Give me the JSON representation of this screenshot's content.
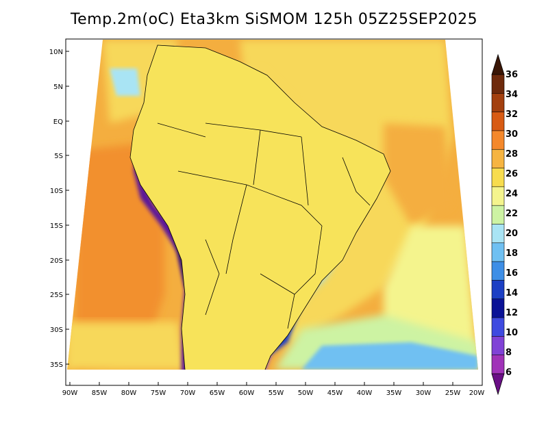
{
  "title": "Temp.2m(oC) Eta3km SiSMOM 125h 05Z25SEP2025",
  "lat_labels": [
    "10N",
    "5N",
    "EQ",
    "5S",
    "10S",
    "15S",
    "20S",
    "25S",
    "30S",
    "35S"
  ],
  "lon_labels": [
    "90W",
    "85W",
    "80W",
    "75W",
    "70W",
    "65W",
    "60W",
    "55W",
    "50W",
    "45W",
    "40W",
    "35W",
    "30W",
    "25W",
    "20W"
  ],
  "colorbar": {
    "labels": [
      "36",
      "34",
      "32",
      "30",
      "28",
      "26",
      "24",
      "22",
      "20",
      "18",
      "16",
      "14",
      "12",
      "10",
      "8",
      "6"
    ],
    "colors": [
      "#3a1606",
      "#6e2a0c",
      "#a3400f",
      "#d85b14",
      "#f4882b",
      "#f6b441",
      "#f7dc4e",
      "#f4f48d",
      "#cdf3a3",
      "#a9e4f4",
      "#6fc0f2",
      "#3d8ee6",
      "#1c3fc4",
      "#0a1296",
      "#3e4ae0",
      "#8042d6",
      "#a033b8",
      "#6a0f86"
    ]
  },
  "colors": {
    "ocean_warm": "#f4ae3f",
    "ocean_hot": "#f2902f",
    "ocean_mild": "#f7d85a",
    "land_warm": "#f7e35a",
    "land_cool": "#3d8ee6",
    "land_cold": "#1c3fc4",
    "andes": "#5b189a"
  }
}
